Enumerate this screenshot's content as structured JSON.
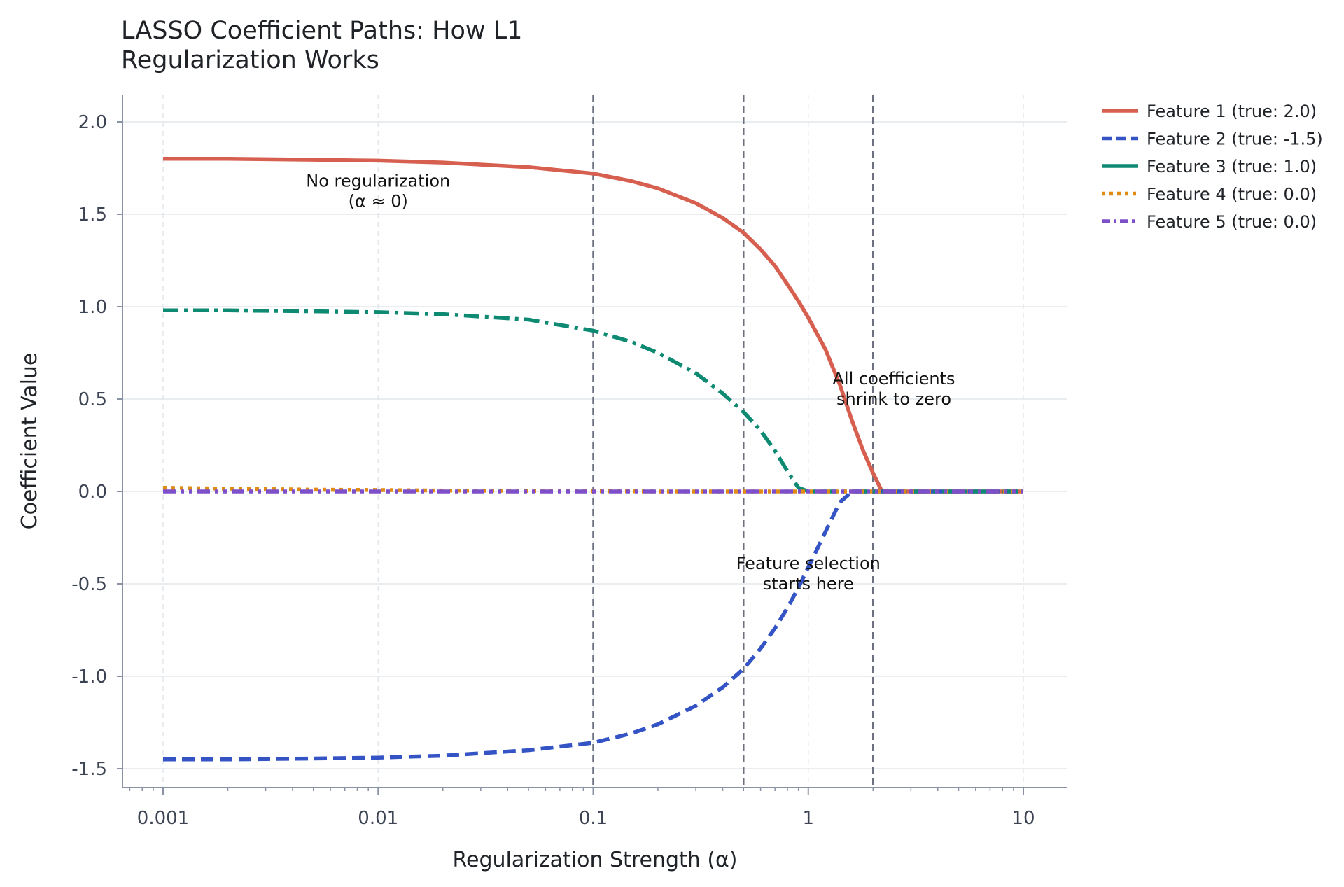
{
  "chart_data": {
    "type": "line",
    "title": "LASSO Coefficient Paths: How L1 Regularization Works",
    "title_lines": [
      "LASSO Coefficient Paths: How L1",
      "Regularization Works"
    ],
    "xlabel": "Regularization Strength (α)",
    "ylabel": "Coefficient Value",
    "x_scale": "log",
    "xlim": [
      0.001,
      10
    ],
    "ylim": [
      -1.6,
      2.15
    ],
    "x_ticks": [
      0.001,
      0.01,
      0.1,
      1,
      10
    ],
    "x_tick_labels": [
      "0.001",
      "0.01",
      "0.1",
      "1",
      "10"
    ],
    "y_ticks": [
      -1.5,
      -1.0,
      -0.5,
      0.0,
      0.5,
      1.0,
      1.5,
      2.0
    ],
    "y_tick_labels": [
      "-1.5",
      "-1.0",
      "-0.5",
      "0.0",
      "0.5",
      "1.0",
      "1.5",
      "2.0"
    ],
    "grid": true,
    "legend_position": "outside-right-top",
    "vlines": [
      0.1,
      0.5,
      2.0
    ],
    "annotations": [
      {
        "lines": [
          "No regularization",
          "(α ≈ 0)"
        ],
        "x": 0.01,
        "y": 1.65
      },
      {
        "lines": [
          "All coefficients",
          "shrink to zero"
        ],
        "x": 2.5,
        "y": 0.58
      },
      {
        "lines": [
          "Feature selection",
          "starts here"
        ],
        "x": 1.0,
        "y": -0.42
      }
    ],
    "x": [
      0.001,
      0.002,
      0.005,
      0.01,
      0.02,
      0.05,
      0.1,
      0.15,
      0.2,
      0.3,
      0.4,
      0.5,
      0.6,
      0.7,
      0.8,
      0.9,
      1.0,
      1.2,
      1.4,
      1.6,
      1.8,
      2.0,
      2.2,
      2.5,
      3,
      5,
      10
    ],
    "series": [
      {
        "name": "Feature 1 (true: 2.0)",
        "color": "#d65f4f",
        "dash": "solid",
        "values": [
          1.8,
          1.8,
          1.795,
          1.79,
          1.78,
          1.755,
          1.72,
          1.68,
          1.64,
          1.56,
          1.48,
          1.4,
          1.31,
          1.22,
          1.12,
          1.03,
          0.94,
          0.77,
          0.58,
          0.38,
          0.22,
          0.1,
          0.0,
          0.0,
          0.0,
          0.0,
          0.0
        ]
      },
      {
        "name": "Feature 2 (true: -1.5)",
        "color": "#3453c4",
        "dash": "dashed",
        "values": [
          -1.45,
          -1.45,
          -1.445,
          -1.44,
          -1.43,
          -1.4,
          -1.36,
          -1.31,
          -1.26,
          -1.16,
          -1.06,
          -0.96,
          -0.85,
          -0.74,
          -0.63,
          -0.52,
          -0.41,
          -0.22,
          -0.06,
          0.0,
          0.0,
          0.0,
          0.0,
          0.0,
          0.0,
          0.0,
          0.0
        ]
      },
      {
        "name": "Feature 3 (true: 1.0)",
        "color": "#0e8a73",
        "dash": "dashdot",
        "values": [
          0.98,
          0.98,
          0.975,
          0.97,
          0.96,
          0.93,
          0.87,
          0.81,
          0.75,
          0.64,
          0.53,
          0.43,
          0.33,
          0.22,
          0.11,
          0.02,
          0.0,
          0.0,
          0.0,
          0.0,
          0.0,
          0.0,
          0.0,
          0.0,
          0.0,
          0.0,
          0.0
        ]
      },
      {
        "name": "Feature 4 (true: 0.0)",
        "color": "#e08b16",
        "dash": "dotted",
        "values": [
          0.02,
          0.015,
          0.01,
          0.008,
          0.005,
          0.003,
          0.002,
          0.001,
          0.0,
          0.0,
          0.0,
          0.0,
          0.0,
          0.0,
          0.0,
          0.0,
          0.0,
          0.0,
          0.0,
          0.0,
          0.0,
          0.0,
          0.0,
          0.0,
          0.0,
          0.0,
          0.0
        ]
      },
      {
        "name": "Feature 5 (true: 0.0)",
        "color": "#7d4fc9",
        "dash": "dashdotdot",
        "values": [
          0.0,
          0.0,
          0.0,
          0.0,
          0.0,
          0.0,
          0.0,
          0.0,
          0.0,
          0.0,
          0.0,
          0.0,
          0.0,
          0.0,
          0.0,
          0.0,
          0.0,
          0.0,
          0.0,
          0.0,
          0.0,
          0.0,
          0.0,
          0.0,
          0.0,
          0.0,
          0.0
        ]
      }
    ]
  }
}
